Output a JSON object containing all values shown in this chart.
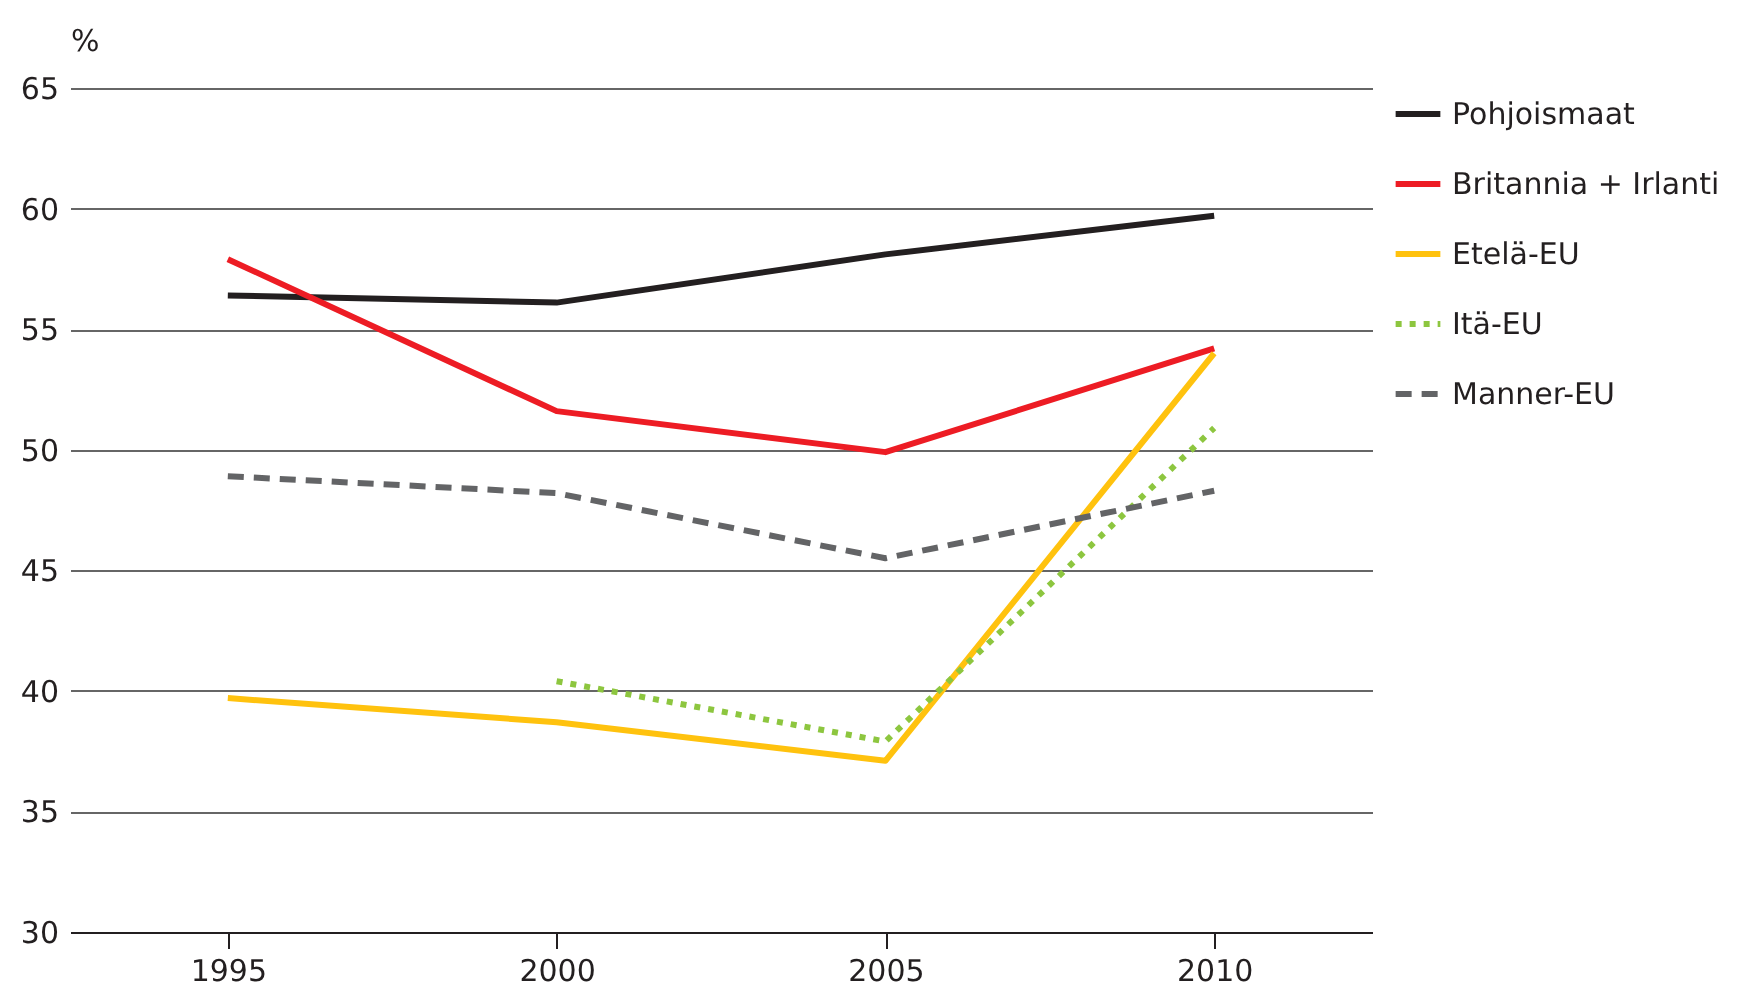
{
  "chart_data": {
    "type": "line",
    "ylabel": "%",
    "x": [
      1995,
      2000,
      2005,
      2010
    ],
    "xlim": [
      1992.6,
      2012.4
    ],
    "xticks": [
      1995,
      2000,
      2005,
      2010
    ],
    "ylim": [
      30,
      65
    ],
    "yticks": [
      30,
      35,
      40,
      45,
      50,
      55,
      60,
      65
    ],
    "grid": "y",
    "legend": "right",
    "series": [
      {
        "name": "Pohjoismaat",
        "color": "#231f20",
        "line_style": "solid",
        "values": [
          56.4,
          56.1,
          58.1,
          59.7
        ]
      },
      {
        "name": "Britannia + Irlanti",
        "color": "#ed1c24",
        "line_style": "solid",
        "values": [
          57.9,
          51.6,
          49.9,
          54.2
        ]
      },
      {
        "name": "Etelä-EU",
        "color": "#ffc20e",
        "line_style": "solid",
        "values": [
          39.7,
          38.7,
          37.1,
          54.0
        ]
      },
      {
        "name": "Itä-EU",
        "color": "#8dc63f",
        "line_style": "dotted",
        "values": [
          null,
          40.4,
          37.9,
          50.9
        ]
      },
      {
        "name": "Manner-EU",
        "color": "#636466",
        "line_style": "dashed",
        "values": [
          48.9,
          48.2,
          45.5,
          48.3
        ]
      }
    ]
  }
}
